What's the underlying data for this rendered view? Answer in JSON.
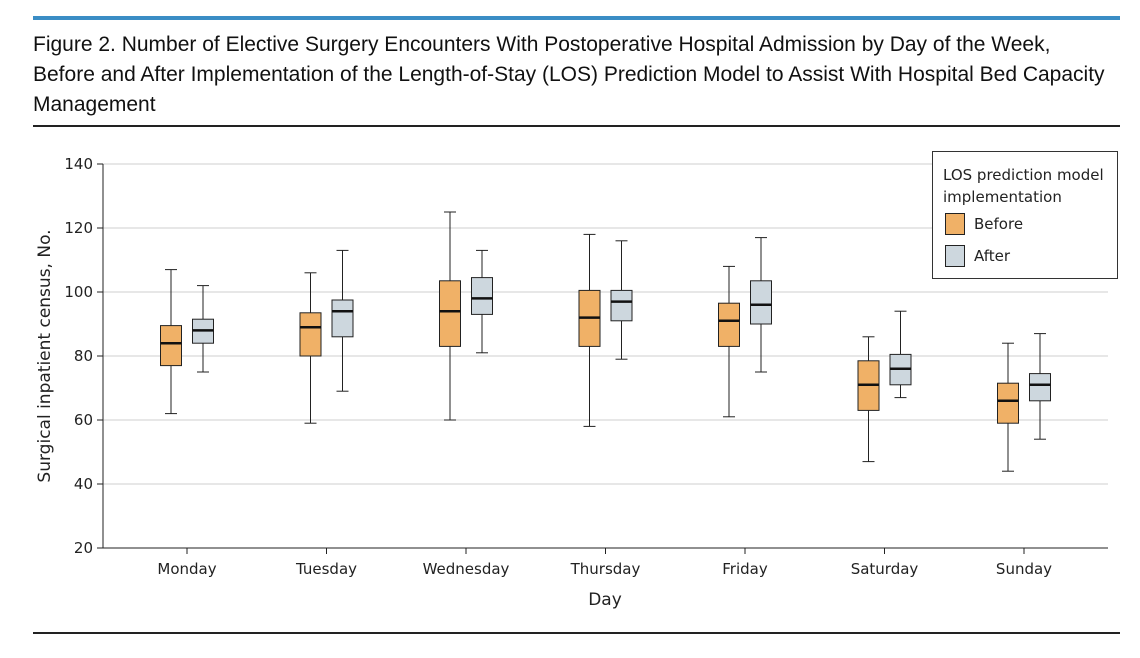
{
  "figure": {
    "title": "Figure 2. Number of Elective Surgery Encounters With Postoperative Hospital Admission by Day of the Week, Before and After Implementation of the Length-of-Stay (LOS) Prediction Model to Assist With Hospital Bed Capacity Management"
  },
  "chart_data": {
    "type": "box",
    "xlabel": "Day",
    "ylabel": "Surgical inpatient census, No.",
    "ylim": [
      20,
      140
    ],
    "yticks": [
      20,
      40,
      60,
      80,
      100,
      120,
      140
    ],
    "grid": true,
    "categories": [
      "Monday",
      "Tuesday",
      "Wednesday",
      "Thursday",
      "Friday",
      "Saturday",
      "Sunday"
    ],
    "legend": {
      "title": "LOS prediction model implementation",
      "placement": "top-right"
    },
    "series": [
      {
        "name": "Before",
        "color": "#f0b167",
        "boxes": [
          {
            "min": 62,
            "q1": 77,
            "median": 84,
            "q3": 89.5,
            "max": 107
          },
          {
            "min": 59,
            "q1": 80,
            "median": 89,
            "q3": 93.5,
            "max": 106
          },
          {
            "min": 60,
            "q1": 83,
            "median": 94,
            "q3": 103.5,
            "max": 125
          },
          {
            "min": 58,
            "q1": 83,
            "median": 92,
            "q3": 100.5,
            "max": 118
          },
          {
            "min": 61,
            "q1": 83,
            "median": 91,
            "q3": 96.5,
            "max": 108
          },
          {
            "min": 47,
            "q1": 63,
            "median": 71,
            "q3": 78.5,
            "max": 86
          },
          {
            "min": 44,
            "q1": 59,
            "median": 66,
            "q3": 71.5,
            "max": 84
          }
        ]
      },
      {
        "name": "After",
        "color": "#cdd7de",
        "boxes": [
          {
            "min": 75,
            "q1": 84,
            "median": 88,
            "q3": 91.5,
            "max": 102
          },
          {
            "min": 69,
            "q1": 86,
            "median": 94,
            "q3": 97.5,
            "max": 113
          },
          {
            "min": 81,
            "q1": 93,
            "median": 98,
            "q3": 104.5,
            "max": 113
          },
          {
            "min": 79,
            "q1": 91,
            "median": 97,
            "q3": 100.5,
            "max": 116
          },
          {
            "min": 75,
            "q1": 90,
            "median": 96,
            "q3": 103.5,
            "max": 117
          },
          {
            "min": 67,
            "q1": 71,
            "median": 76,
            "q3": 80.5,
            "max": 94
          },
          {
            "min": 54,
            "q1": 66,
            "median": 71,
            "q3": 74.5,
            "max": 87
          }
        ]
      }
    ]
  }
}
